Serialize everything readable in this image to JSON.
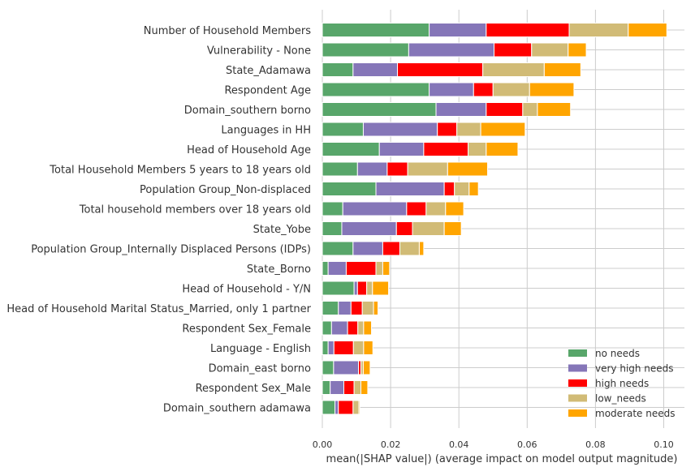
{
  "chart_data": {
    "type": "bar",
    "orientation": "horizontal",
    "stacked": true,
    "xlabel": "mean(|SHAP value|) (average impact on model output magnitude)",
    "ylabel": "",
    "xlim": [
      0,
      0.106
    ],
    "xticks": [
      "0.00",
      "0.02",
      "0.04",
      "0.06",
      "0.08",
      "0.10"
    ],
    "xtick_values": [
      0,
      0.02,
      0.04,
      0.06,
      0.08,
      0.1
    ],
    "grid": true,
    "legend_position": "lower-right",
    "categories": [
      "Number of Household Members",
      "Vulnerability - None",
      "State_Adamawa",
      "Respondent Age",
      "Domain_southern borno",
      "Languages in HH",
      "Head of Household Age",
      "Total Household Members 5 years to 18 years old",
      "Population Group_Non-displaced",
      "Total household members over 18 years old",
      "State_Yobe",
      "Population Group_Internally Displaced Persons (IDPs)",
      "State_Borno",
      "Head of Household - Y/N",
      "Head of Household Marital Status_Married, only 1 partner",
      "Respondent Sex_Female",
      "Language - English",
      "Domain_east borno",
      "Respondent Sex_Male",
      "Domain_southern adamawa"
    ],
    "series": [
      {
        "name": "no needs",
        "color": "#58a66a",
        "values": [
          0.0313,
          0.0253,
          0.009,
          0.0313,
          0.0333,
          0.012,
          0.0167,
          0.0103,
          0.0157,
          0.006,
          0.0057,
          0.009,
          0.0017,
          0.0093,
          0.0047,
          0.0027,
          0.0017,
          0.0033,
          0.0023,
          0.0037
        ]
      },
      {
        "name": "very high needs",
        "color": "#8576b8",
        "values": [
          0.0167,
          0.025,
          0.013,
          0.013,
          0.0147,
          0.0217,
          0.013,
          0.0087,
          0.02,
          0.0187,
          0.016,
          0.0087,
          0.0053,
          0.001,
          0.0037,
          0.0047,
          0.0017,
          0.0073,
          0.004,
          0.001
        ]
      },
      {
        "name": "high needs",
        "color": "#ff0000",
        "values": [
          0.0243,
          0.011,
          0.025,
          0.0057,
          0.0107,
          0.0057,
          0.013,
          0.006,
          0.003,
          0.0057,
          0.0047,
          0.005,
          0.0087,
          0.0027,
          0.0033,
          0.003,
          0.0057,
          0.0007,
          0.003,
          0.0043
        ]
      },
      {
        "name": "low_needs",
        "color": "#d1bb76",
        "values": [
          0.0173,
          0.0107,
          0.018,
          0.0107,
          0.0043,
          0.007,
          0.0053,
          0.0117,
          0.0043,
          0.0057,
          0.0093,
          0.0057,
          0.002,
          0.0017,
          0.0033,
          0.0017,
          0.003,
          0.0007,
          0.002,
          0.0017
        ]
      },
      {
        "name": "moderate needs",
        "color": "#ffa500",
        "values": [
          0.0113,
          0.0053,
          0.0107,
          0.013,
          0.0097,
          0.013,
          0.0093,
          0.0117,
          0.0027,
          0.0053,
          0.005,
          0.0013,
          0.002,
          0.0047,
          0.0013,
          0.0023,
          0.0027,
          0.002,
          0.002,
          0.0003
        ]
      }
    ]
  }
}
